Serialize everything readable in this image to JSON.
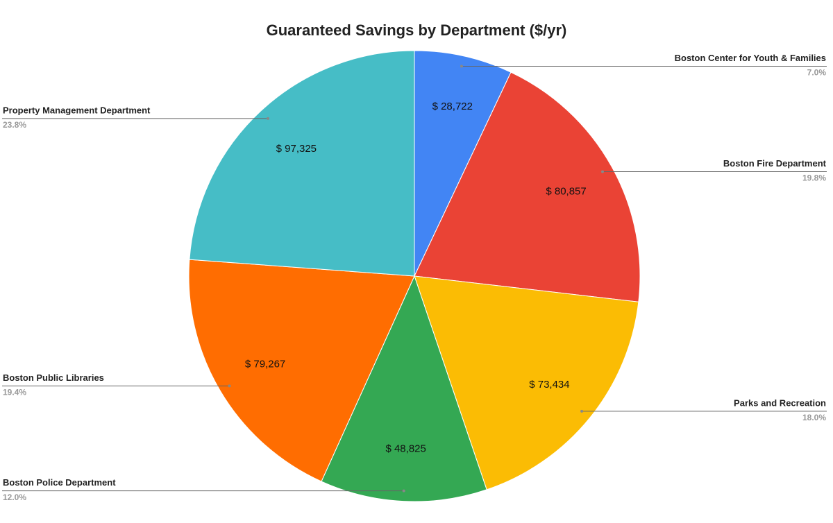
{
  "chart_data": {
    "type": "pie",
    "title": "Guaranteed Savings by Department ($/yr)",
    "categories": [
      "Boston Center for Youth & Families",
      "Boston Fire Department",
      "Parks and Recreation",
      "Boston Police Department",
      "Boston Public Libraries",
      "Property Management Department"
    ],
    "values": [
      28722,
      80857,
      73434,
      48825,
      79267,
      97325
    ],
    "value_labels": [
      "$ 28,722",
      "$ 80,857",
      "$ 73,434",
      "$ 48,825",
      "$ 79,267",
      "$ 97,325"
    ],
    "percent_labels": [
      "7.0%",
      "19.8%",
      "18.0%",
      "12.0%",
      "19.4%",
      "23.8%"
    ],
    "colors": [
      "#4285f4",
      "#ea4335",
      "#fbbc04",
      "#34a853",
      "#ff6d01",
      "#46bdc6"
    ]
  }
}
